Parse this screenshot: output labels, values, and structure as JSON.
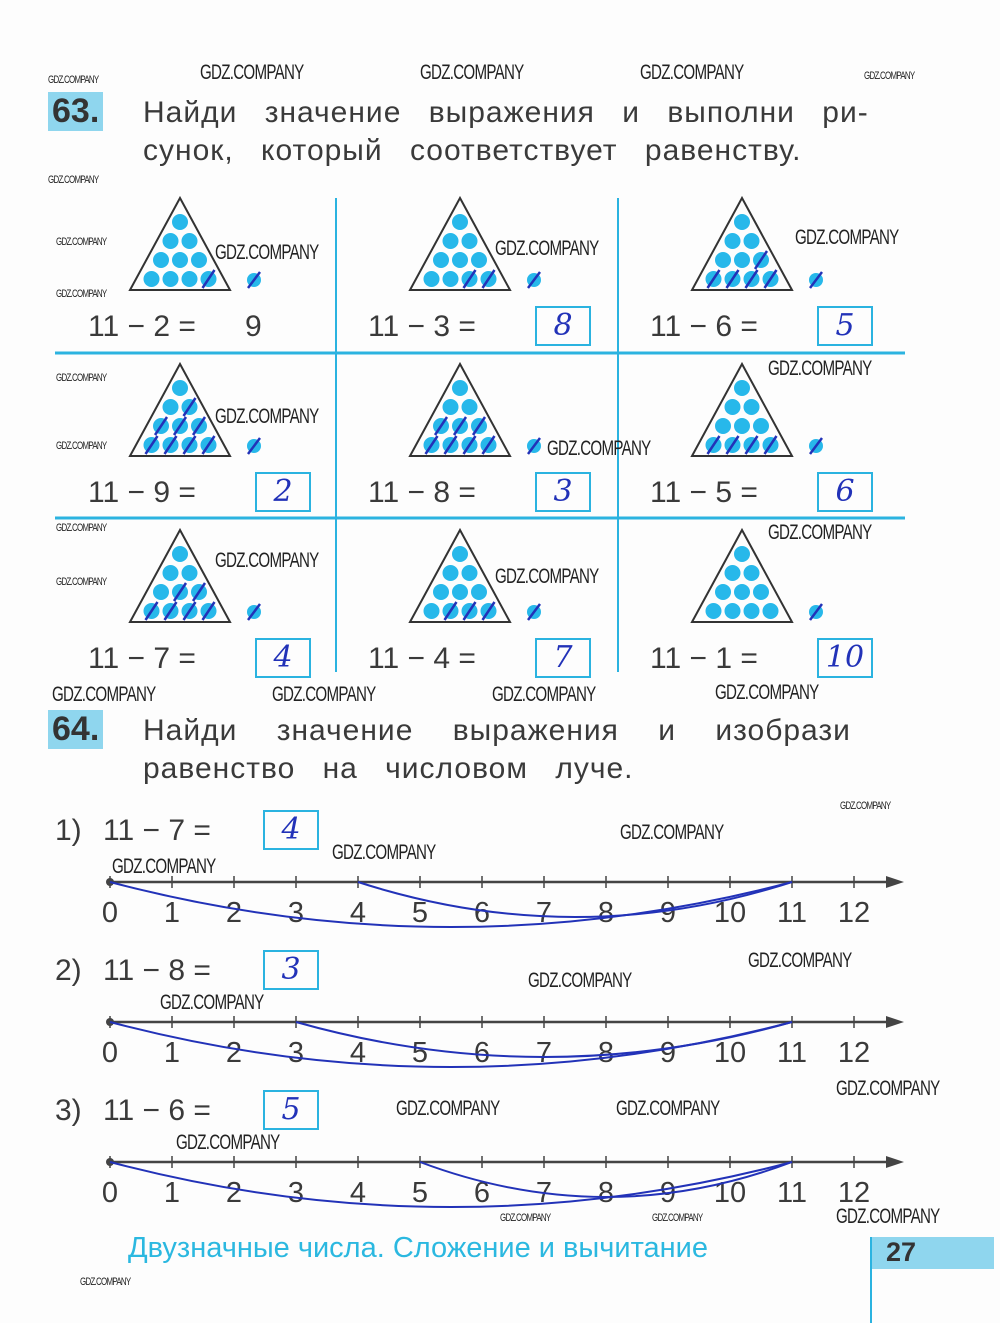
{
  "task63": {
    "number": "63.",
    "text_line1": "Найди значение выражения и выполни ри-",
    "text_line2": "сунок, который соответствует равенству.",
    "cells": [
      {
        "expr": "11 − 2 =",
        "answer": "9",
        "printed": true
      },
      {
        "expr": "11 − 3 =",
        "answer": "8"
      },
      {
        "expr": "11 − 6 =",
        "answer": "5"
      },
      {
        "expr": "11 − 9 =",
        "answer": "2"
      },
      {
        "expr": "11 − 8 =",
        "answer": "3"
      },
      {
        "expr": "11 − 5 =",
        "answer": "6"
      },
      {
        "expr": "11 − 7 =",
        "answer": "4"
      },
      {
        "expr": "11 − 4 =",
        "answer": "7"
      },
      {
        "expr": "11 − 1 =",
        "answer": "10"
      }
    ]
  },
  "task64": {
    "number": "64.",
    "text_line1": "Найди значение выражения и изобрази",
    "text_line2": "равенство на числовом луче.",
    "items": [
      {
        "label": "1)",
        "expr": "11 − 7 =",
        "answer": "4"
      },
      {
        "label": "2)",
        "expr": "11 − 8 =",
        "answer": "3"
      },
      {
        "label": "3)",
        "expr": "11 − 6 =",
        "answer": "5"
      }
    ],
    "ticks": [
      "0",
      "1",
      "2",
      "3",
      "4",
      "5",
      "6",
      "7",
      "8",
      "9",
      "10",
      "11",
      "12"
    ]
  },
  "footer": {
    "title": "Двузначные числа. Сложение и вычитание",
    "page": "27"
  },
  "watermark": "GDZ.COMPANY",
  "colors": {
    "accent": "#2bb3e0",
    "dots": "#27b8ea",
    "ink": "#2232b8"
  }
}
